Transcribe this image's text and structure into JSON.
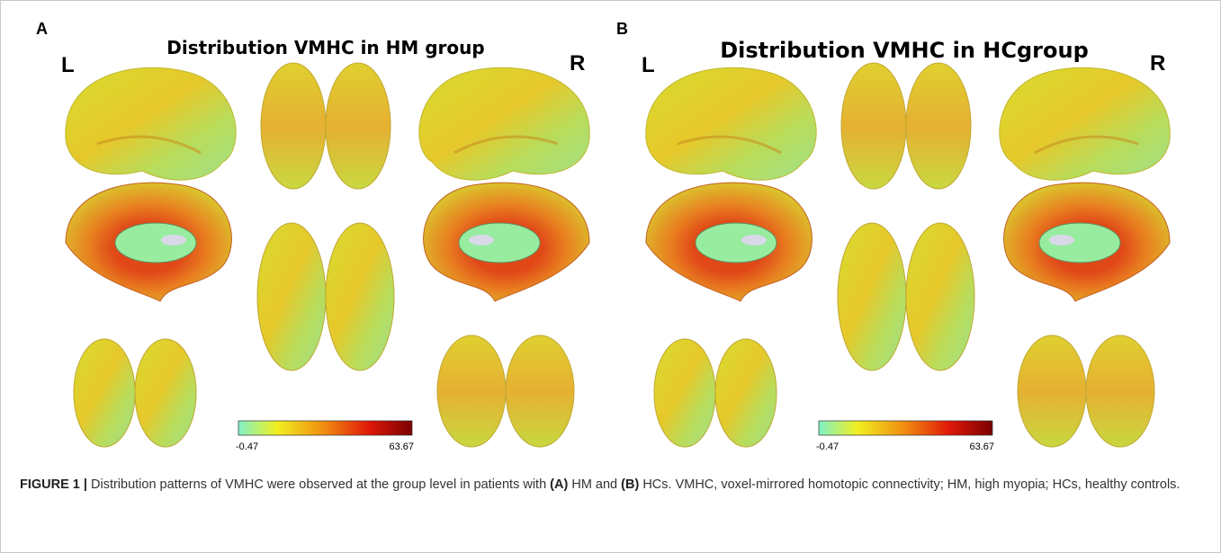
{
  "panels": [
    {
      "letter": "A",
      "title": "Distribution VMHC in HM group",
      "left": "L",
      "right": "R",
      "colorbar": {
        "min": -0.47,
        "max": 63.67
      }
    },
    {
      "letter": "B",
      "title": "Distribution VMHC in HCgroup",
      "left": "L",
      "right": "R",
      "colorbar": {
        "min": -0.47,
        "max": 63.67
      }
    }
  ],
  "caption": {
    "label": "FIGURE 1 |",
    "parts": [
      "Distribution patterns of VMHC were observed at the group level in patients with",
      "(A)",
      "HM and",
      "(B)",
      "HCs. VMHC, voxel-mirrored homotopic connectivity; HM, high myopia; HCs, healthy controls."
    ]
  }
}
